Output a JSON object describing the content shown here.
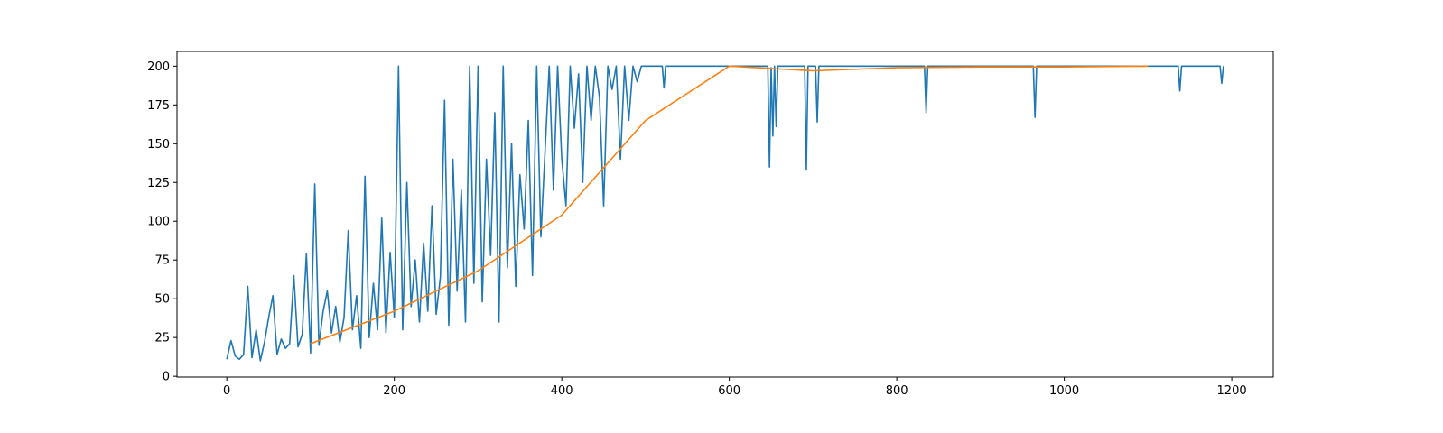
{
  "chart_data": {
    "type": "line",
    "xlim": [
      -59.5,
      1249.5
    ],
    "ylim": [
      -0.5,
      209.5
    ],
    "xticks": [
      0,
      200,
      400,
      600,
      800,
      1000,
      1200
    ],
    "yticks": [
      0,
      25,
      50,
      75,
      100,
      125,
      150,
      175,
      200
    ],
    "grid": false,
    "series": [
      {
        "color": "#1f77b4",
        "x": [
          0,
          5,
          10,
          15,
          20,
          25,
          30,
          35,
          40,
          45,
          50,
          55,
          60,
          65,
          70,
          75,
          80,
          85,
          90,
          95,
          100,
          105,
          110,
          115,
          120,
          125,
          130,
          135,
          140,
          145,
          150,
          155,
          160,
          165,
          170,
          175,
          180,
          185,
          190,
          195,
          200,
          205,
          210,
          215,
          220,
          225,
          230,
          235,
          240,
          245,
          250,
          255,
          260,
          265,
          270,
          275,
          280,
          285,
          290,
          295,
          300,
          305,
          310,
          315,
          320,
          325,
          330,
          335,
          340,
          345,
          350,
          355,
          360,
          365,
          370,
          375,
          380,
          385,
          390,
          395,
          400,
          405,
          410,
          415,
          420,
          425,
          430,
          435,
          440,
          445,
          450,
          455,
          460,
          465,
          470,
          475,
          480,
          485,
          490,
          495,
          500,
          505,
          520,
          522,
          524,
          646,
          648,
          650,
          652,
          654,
          656,
          658,
          690,
          692,
          694,
          703,
          705,
          707,
          833,
          835,
          837,
          963,
          965,
          967,
          1136,
          1138,
          1140,
          1186,
          1188,
          1190
        ],
        "values": [
          11,
          23,
          13,
          11,
          14,
          58,
          12,
          30,
          10,
          22,
          38,
          52,
          14,
          24,
          18,
          21,
          65,
          19,
          27,
          79,
          15,
          124,
          20,
          42,
          55,
          28,
          45,
          22,
          38,
          94,
          30,
          52,
          18,
          129,
          25,
          60,
          30,
          102,
          28,
          80,
          38,
          200,
          30,
          125,
          45,
          75,
          35,
          86,
          42,
          110,
          40,
          64,
          178,
          33,
          140,
          55,
          120,
          35,
          200,
          60,
          200,
          48,
          140,
          78,
          170,
          35,
          200,
          70,
          150,
          58,
          130,
          95,
          165,
          65,
          200,
          90,
          145,
          200,
          120,
          200,
          140,
          110,
          200,
          160,
          195,
          125,
          200,
          165,
          200,
          180,
          110,
          200,
          185,
          200,
          140,
          200,
          165,
          200,
          190,
          200,
          200,
          200,
          200,
          186,
          200,
          200,
          135,
          199,
          155,
          200,
          161,
          200,
          200,
          133,
          200,
          200,
          164,
          200,
          200,
          170,
          200,
          200,
          167,
          200,
          200,
          184,
          200,
          200,
          189,
          200
        ]
      },
      {
        "color": "#ff7f0e",
        "x": [
          100,
          200,
          300,
          400,
          500,
          600,
          700,
          800,
          900,
          1000,
          1100
        ],
        "values": [
          21,
          42,
          68,
          104,
          165,
          200,
          197,
          199,
          199.5,
          199.5,
          200
        ]
      }
    ]
  }
}
